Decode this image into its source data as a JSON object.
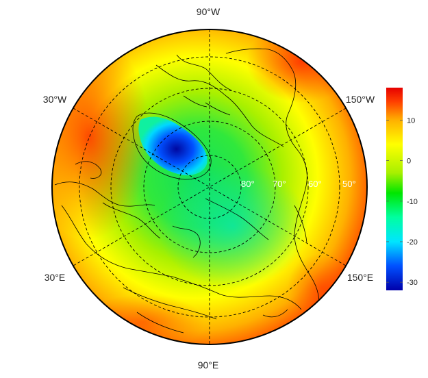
{
  "map": {
    "projection": "north-polar-orthographic",
    "variable_range": [
      -32,
      18
    ],
    "longitude_labels": [
      {
        "id": "90w",
        "text": "90°W"
      },
      {
        "id": "30w",
        "text": "30°W"
      },
      {
        "id": "150w",
        "text": "150°W"
      },
      {
        "id": "30e",
        "text": "30°E"
      },
      {
        "id": "150e",
        "text": "150°E"
      },
      {
        "id": "90e",
        "text": "90°E"
      }
    ],
    "latitude_labels": [
      "80°",
      "70°",
      "60°",
      "50°"
    ],
    "graticule": {
      "latitudes": [
        80,
        70,
        60,
        50
      ],
      "meridians": "every 30°",
      "style": "dashed"
    }
  },
  "colorbar": {
    "ticks": [
      "10",
      "0",
      "-10",
      "-20",
      "-30"
    ],
    "tick_values": [
      10,
      0,
      -10,
      -20,
      -30
    ],
    "min": -32,
    "max": 18,
    "colors": [
      "#0000aa",
      "#0050ff",
      "#00e5ff",
      "#00ffa0",
      "#00e600",
      "#a8f000",
      "#ffff00",
      "#ffb000",
      "#ff4000",
      "#e60000"
    ]
  }
}
